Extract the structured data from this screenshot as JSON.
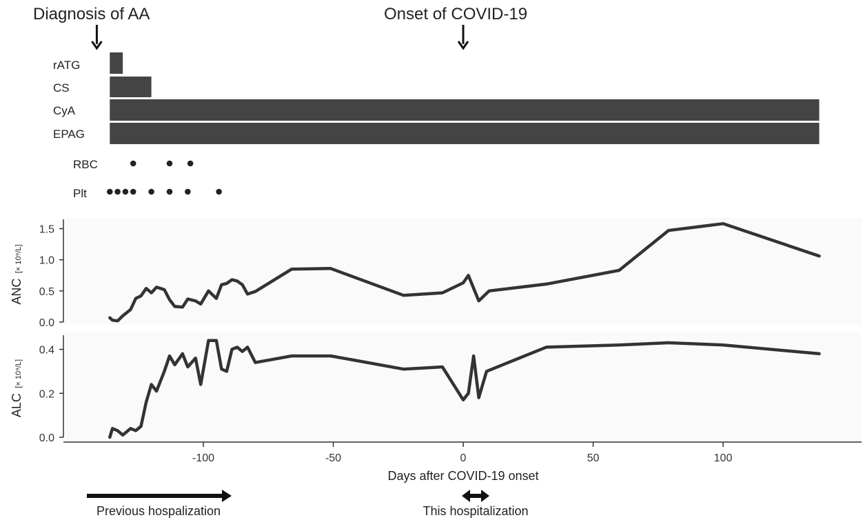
{
  "annotations": {
    "diagnosis": "Diagnosis of AA",
    "onset": "Onset of COVID-19"
  },
  "treatments": [
    {
      "name": "rATG",
      "start": -136,
      "end": -131
    },
    {
      "name": "CS",
      "start": -136,
      "end": -120
    },
    {
      "name": "CyA",
      "start": -136,
      "end": 137
    },
    {
      "name": "EPAG",
      "start": -136,
      "end": 137
    }
  ],
  "transfusions": {
    "RBC": {
      "label": "RBC",
      "days": [
        -127,
        -113,
        -105
      ]
    },
    "Plt": {
      "label": "Plt",
      "days": [
        -136,
        -133,
        -130,
        -127,
        -120,
        -113,
        -106,
        -94
      ]
    }
  },
  "chart_data": [
    {
      "type": "line",
      "panel": "ANC",
      "ylabel_main": "ANC",
      "ylabel_unit": "[× 10⁹/L]",
      "ylim": [
        0,
        1.6
      ],
      "yticks": [
        0.0,
        0.5,
        1.0,
        1.5
      ],
      "ytick_labels": [
        "0.0",
        "0.5",
        "1.0",
        "1.5"
      ],
      "x": [
        -136,
        -135,
        -133,
        -131,
        -128,
        -126,
        -124,
        -122,
        -120,
        -118,
        -115,
        -113,
        -111,
        -108,
        -106,
        -103,
        -101,
        -98,
        -95,
        -93,
        -91,
        -89,
        -87,
        -85,
        -83,
        -80,
        -66,
        -51,
        -23,
        -8,
        0,
        2,
        6,
        10,
        32,
        60,
        79,
        100,
        137
      ],
      "y": [
        0.07,
        0.03,
        0.02,
        0.1,
        0.2,
        0.38,
        0.42,
        0.54,
        0.47,
        0.56,
        0.52,
        0.36,
        0.25,
        0.24,
        0.37,
        0.34,
        0.29,
        0.5,
        0.38,
        0.6,
        0.62,
        0.68,
        0.66,
        0.6,
        0.45,
        0.49,
        0.85,
        0.86,
        0.43,
        0.47,
        0.63,
        0.75,
        0.34,
        0.5,
        0.61,
        0.83,
        1.47,
        1.58,
        1.06
      ]
    },
    {
      "type": "line",
      "panel": "ALC",
      "ylabel_main": "ALC",
      "ylabel_unit": "[× 10⁹/L]",
      "ylim": [
        0,
        0.44
      ],
      "yticks": [
        0.0,
        0.2,
        0.4
      ],
      "ytick_labels": [
        "0.0",
        "0.2",
        "0.4"
      ],
      "x": [
        -136,
        -135,
        -133,
        -131,
        -128,
        -126,
        -124,
        -122,
        -120,
        -118,
        -115,
        -113,
        -111,
        -108,
        -106,
        -103,
        -101,
        -98,
        -95,
        -93,
        -91,
        -89,
        -87,
        -85,
        -83,
        -80,
        -66,
        -51,
        -23,
        -8,
        0,
        2,
        4,
        6,
        9,
        32,
        60,
        79,
        100,
        137
      ],
      "y": [
        0.0,
        0.04,
        0.03,
        0.01,
        0.04,
        0.03,
        0.05,
        0.16,
        0.24,
        0.21,
        0.3,
        0.37,
        0.33,
        0.38,
        0.32,
        0.36,
        0.24,
        0.44,
        0.44,
        0.31,
        0.3,
        0.4,
        0.41,
        0.39,
        0.41,
        0.34,
        0.37,
        0.37,
        0.31,
        0.32,
        0.17,
        0.2,
        0.37,
        0.18,
        0.3,
        0.41,
        0.42,
        0.43,
        0.42,
        0.38
      ]
    }
  ],
  "x_axis": {
    "label": "Days after COVID-19 onset",
    "ticks": [
      -100,
      -50,
      0,
      50,
      100
    ],
    "tick_labels": [
      "-100",
      "-50",
      "0",
      "50",
      "100"
    ],
    "xlim": [
      -146,
      152
    ]
  },
  "hospitalizations": [
    {
      "label": "Previous hospalization",
      "start": -144,
      "end": -89,
      "direction": "right"
    },
    {
      "label": "This hospitalization",
      "start": 0,
      "end": 9,
      "direction": "both"
    }
  ],
  "colors": {
    "bar": "#444444",
    "line": "#333333",
    "panel_bg": "#fafafa",
    "arrow": "#111111"
  }
}
